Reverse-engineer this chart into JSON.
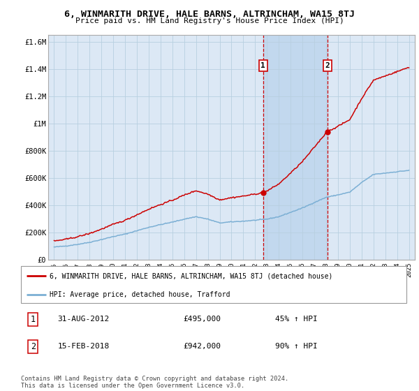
{
  "title": "6, WINMARITH DRIVE, HALE BARNS, ALTRINCHAM, WA15 8TJ",
  "subtitle": "Price paid vs. HM Land Registry's House Price Index (HPI)",
  "legend_line1": "6, WINMARITH DRIVE, HALE BARNS, ALTRINCHAM, WA15 8TJ (detached house)",
  "legend_line2": "HPI: Average price, detached house, Trafford",
  "footnote": "Contains HM Land Registry data © Crown copyright and database right 2024.\nThis data is licensed under the Open Government Licence v3.0.",
  "sale1_date": "31-AUG-2012",
  "sale1_price": "£495,000",
  "sale1_hpi": "45% ↑ HPI",
  "sale2_date": "15-FEB-2018",
  "sale2_price": "£942,000",
  "sale2_hpi": "90% ↑ HPI",
  "hpi_color": "#7bafd4",
  "sale_color": "#cc0000",
  "sale1_x": 2012.67,
  "sale1_y": 495000,
  "sale2_x": 2018.12,
  "sale2_y": 942000,
  "ylim_bottom": 0,
  "ylim_top": 1650000,
  "xlim_left": 1994.5,
  "xlim_right": 2025.5,
  "yticks": [
    0,
    200000,
    400000,
    600000,
    800000,
    1000000,
    1200000,
    1400000,
    1600000
  ],
  "ytick_labels": [
    "£0",
    "£200K",
    "£400K",
    "£600K",
    "£800K",
    "£1M",
    "£1.2M",
    "£1.4M",
    "£1.6M"
  ],
  "xticks": [
    1995,
    1996,
    1997,
    1998,
    1999,
    2000,
    2001,
    2002,
    2003,
    2004,
    2005,
    2006,
    2007,
    2008,
    2009,
    2010,
    2011,
    2012,
    2013,
    2014,
    2015,
    2016,
    2017,
    2018,
    2019,
    2020,
    2021,
    2022,
    2023,
    2024,
    2025
  ],
  "plot_bg_color": "#dce8f5",
  "shade_color": "#c2d8ee",
  "grid_color": "#b8cfe0"
}
